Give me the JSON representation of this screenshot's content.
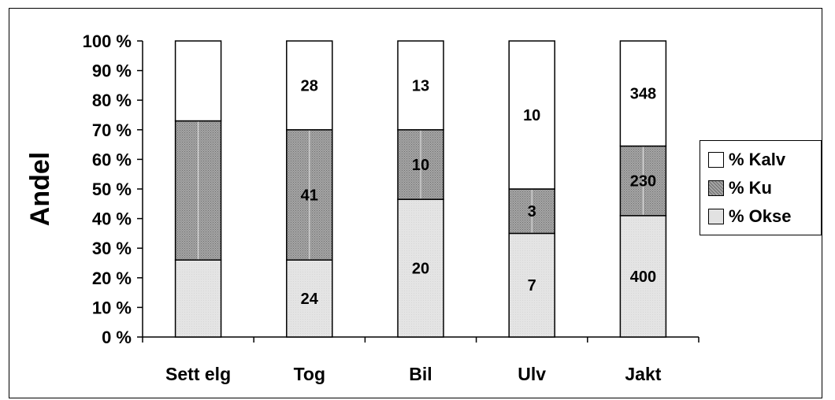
{
  "chart_data": {
    "type": "bar",
    "stacked": true,
    "percent": true,
    "ylabel": "Andel",
    "ylim": [
      0,
      100
    ],
    "yticks": [
      "0 %",
      "10 %",
      "20 %",
      "30 %",
      "40 %",
      "50 %",
      "60 %",
      "70 %",
      "80 %",
      "90 %",
      "100 %"
    ],
    "categories": [
      "Sett elg",
      "Tog",
      "Bil",
      "Ulv",
      "Jakt"
    ],
    "series": [
      {
        "name": "% Okse",
        "values": [
          26,
          26,
          46.5,
          35,
          41
        ],
        "labels": [
          "",
          "24",
          "20",
          "7",
          "400"
        ],
        "color": "#e2e2e2"
      },
      {
        "name": "% Ku",
        "values": [
          47,
          44,
          23.5,
          15,
          23.5
        ],
        "labels": [
          "",
          "41",
          "10",
          "3",
          "230"
        ],
        "color": "#8c8c8c"
      },
      {
        "name": "% Kalv",
        "values": [
          27,
          30,
          30,
          50,
          35.5
        ],
        "labels": [
          "",
          "28",
          "13",
          "10",
          "348"
        ],
        "color": "#ffffff"
      }
    ],
    "legend_order": [
      "% Kalv",
      "% Ku",
      "% Okse"
    ],
    "legend_position": "right",
    "grid": false
  }
}
